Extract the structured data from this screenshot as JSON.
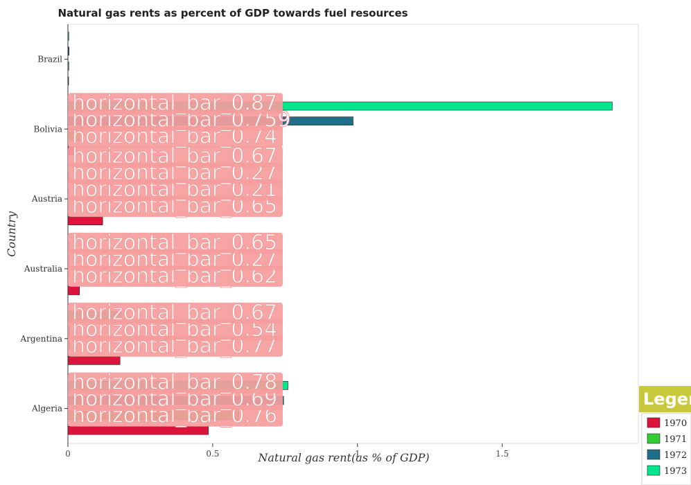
{
  "chart_data": {
    "type": "bar",
    "orientation": "horizontal",
    "title": "Natural gas rents as percent of GDP towards fuel resources",
    "xlabel": "Natural gas rent(as % of GDP)",
    "ylabel": "Country",
    "categories": [
      "Algeria",
      "Argentina",
      "Australia",
      "Austria",
      "Bolivia",
      "Brazil"
    ],
    "xlim": [
      0,
      1.97
    ],
    "xticks": [
      0,
      0.5,
      1,
      1.5
    ],
    "xtick_labels": [
      "0",
      "0.5",
      "1",
      "1.5"
    ],
    "series": [
      {
        "name": "1970",
        "color": "#dc143c",
        "values": [
          0.485,
          0.18,
          0.04,
          0.12,
          0.03,
          0.002
        ]
      },
      {
        "name": "1971",
        "color": "#32cd32",
        "values": [
          0.59,
          0.006,
          0.003,
          0.002,
          0.04,
          0.003
        ]
      },
      {
        "name": "1972",
        "color": "#1f6f8b",
        "values": [
          0.745,
          0.006,
          0.004,
          0.003,
          0.985,
          0.004
        ]
      },
      {
        "name": "1973",
        "color": "#00e68a",
        "values": [
          0.76,
          0.185,
          0.004,
          0.003,
          1.88,
          0.003
        ]
      }
    ],
    "legend": {
      "title": "Legend",
      "position": "bottom-right"
    },
    "annotations": [
      {
        "text": "horizontal_bar_0.76",
        "category": "Algeria"
      },
      {
        "text": "horizontal_bar_0.69",
        "category": "Algeria"
      },
      {
        "text": "horizontal_bar_0.78",
        "category": "Algeria"
      },
      {
        "text": "horizontal_bar_0.77",
        "category": "Argentina"
      },
      {
        "text": "horizontal_bar_0.54",
        "category": "Argentina"
      },
      {
        "text": "horizontal_bar_0.67",
        "category": "Argentina"
      },
      {
        "text": "horizontal_bar_0.62",
        "category": "Australia"
      },
      {
        "text": "horizontal_bar_0.27",
        "category": "Australia"
      },
      {
        "text": "horizontal_bar_0.65",
        "category": "Australia"
      },
      {
        "text": "horizontal_bar_0.65",
        "category": "Austria"
      },
      {
        "text": "horizontal_bar_0.21",
        "category": "Austria"
      },
      {
        "text": "horizontal_bar_0.27",
        "category": "Austria"
      },
      {
        "text": "horizontal_bar_0.67",
        "category": "Austria"
      },
      {
        "text": "horizontal_bar_0.74",
        "category": "Bolivia"
      },
      {
        "text": "horizontal_bar_0.759",
        "category": "Bolivia"
      },
      {
        "text": "horizontal_bar_0.87",
        "category": "Bolivia"
      }
    ]
  }
}
